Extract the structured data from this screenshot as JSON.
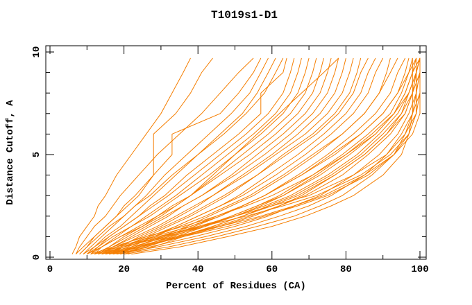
{
  "title": "T1019s1-D1",
  "colors": {
    "curve": "#f57e00",
    "axis": "#000000",
    "background": "#ffffff",
    "text": "#000000"
  },
  "chart_data": {
    "type": "line",
    "title": "T1019s1-D1",
    "xlabel": "Percent of Residues (CA)",
    "ylabel": "Distance Cutoff, A",
    "xlim": [
      0,
      100
    ],
    "ylim": [
      0,
      10
    ],
    "x_major_ticks": [
      0,
      20,
      40,
      60,
      80,
      100
    ],
    "x_minor_ticks": [
      10,
      30,
      50,
      70,
      90
    ],
    "y_major_ticks": [
      0,
      5,
      10
    ],
    "y_minor_ticks": [
      1,
      2,
      3,
      4,
      6,
      7,
      8,
      9
    ],
    "grid": false,
    "legend_position": "none",
    "series_color": "#f57e00",
    "description": "Cumulative model accuracy curves: percent of CA residues (x) under each distance cutoff in Angstroms (y); one orange curve per model, no legend shown",
    "y_levels": [
      0.15,
      0.5,
      1,
      1.5,
      2,
      2.5,
      3,
      4,
      5,
      6,
      7,
      8,
      9,
      9.7
    ],
    "series_x": [
      [
        6,
        7,
        8,
        10,
        12,
        13,
        15,
        18,
        22,
        26,
        30,
        33,
        36,
        38
      ],
      [
        7,
        8,
        10,
        12,
        15,
        17,
        19,
        24,
        29,
        35,
        41,
        46,
        51,
        55
      ],
      [
        8,
        10,
        12,
        15,
        18,
        20,
        23,
        28,
        33,
        33,
        46,
        51,
        55,
        57
      ],
      [
        9,
        11,
        14,
        17,
        20,
        23,
        26,
        31,
        37,
        43,
        49,
        54,
        57,
        59
      ],
      [
        10,
        12,
        15,
        19,
        22,
        25,
        28,
        34,
        40,
        46,
        52,
        56,
        59,
        61
      ],
      [
        8,
        10,
        13,
        16,
        20,
        23,
        27,
        33,
        40,
        47,
        53,
        58,
        61,
        63
      ],
      [
        11,
        13,
        16,
        20,
        24,
        27,
        31,
        37,
        44,
        51,
        57,
        57,
        63,
        64
      ],
      [
        9,
        12,
        16,
        20,
        24,
        28,
        32,
        39,
        46,
        53,
        59,
        63,
        65,
        66
      ],
      [
        12,
        14,
        18,
        22,
        26,
        30,
        34,
        41,
        48,
        55,
        61,
        65,
        67,
        68
      ],
      [
        10,
        13,
        17,
        22,
        27,
        31,
        35,
        43,
        50,
        57,
        63,
        67,
        69,
        70
      ],
      [
        13,
        16,
        20,
        25,
        29,
        33,
        38,
        45,
        52,
        59,
        65,
        69,
        71,
        72
      ],
      [
        11,
        14,
        19,
        24,
        29,
        34,
        38,
        46,
        54,
        61,
        67,
        71,
        73,
        74
      ],
      [
        14,
        17,
        22,
        27,
        32,
        36,
        41,
        49,
        56,
        63,
        69,
        73,
        75,
        76
      ],
      [
        12,
        16,
        21,
        26,
        31,
        36,
        41,
        50,
        58,
        65,
        71,
        75,
        77,
        78
      ],
      [
        15,
        19,
        24,
        30,
        35,
        40,
        44,
        52,
        60,
        67,
        73,
        77,
        79,
        80
      ],
      [
        13,
        17,
        23,
        29,
        34,
        39,
        44,
        53,
        61,
        69,
        75,
        79,
        81,
        82
      ],
      [
        16,
        20,
        26,
        32,
        38,
        43,
        48,
        56,
        63,
        71,
        77,
        81,
        83,
        84
      ],
      [
        14,
        18,
        25,
        31,
        37,
        42,
        47,
        56,
        64,
        72,
        78,
        82,
        84,
        86
      ],
      [
        17,
        22,
        28,
        34,
        40,
        46,
        51,
        59,
        67,
        74,
        80,
        84,
        86,
        88
      ],
      [
        15,
        20,
        27,
        34,
        40,
        46,
        52,
        61,
        69,
        76,
        82,
        86,
        88,
        90
      ],
      [
        18,
        23,
        30,
        37,
        43,
        49,
        55,
        64,
        72,
        79,
        85,
        89,
        91,
        92
      ],
      [
        16,
        21,
        28,
        35,
        42,
        48,
        54,
        63,
        71,
        79,
        85,
        89,
        92,
        94
      ],
      [
        19,
        25,
        32,
        39,
        46,
        52,
        58,
        67,
        75,
        82,
        88,
        92,
        94,
        96
      ],
      [
        17,
        23,
        31,
        38,
        45,
        52,
        58,
        68,
        77,
        84,
        90,
        94,
        96,
        97
      ],
      [
        20,
        26,
        34,
        42,
        49,
        56,
        62,
        71,
        79,
        86,
        92,
        95,
        97,
        98
      ],
      [
        18,
        24,
        33,
        41,
        49,
        56,
        63,
        73,
        81,
        88,
        93,
        96,
        98,
        99
      ],
      [
        21,
        28,
        36,
        44,
        52,
        59,
        66,
        76,
        84,
        90,
        95,
        97,
        99,
        100
      ],
      [
        19,
        26,
        35,
        44,
        52,
        60,
        67,
        77,
        85,
        91,
        96,
        98,
        99,
        100
      ],
      [
        12,
        18,
        28,
        38,
        46,
        52,
        58,
        68,
        76,
        84,
        90,
        94,
        97,
        99
      ],
      [
        14,
        22,
        32,
        42,
        50,
        57,
        63,
        72,
        80,
        87,
        93,
        96,
        98,
        100
      ],
      [
        16,
        25,
        36,
        46,
        55,
        62,
        68,
        77,
        85,
        91,
        95,
        98,
        99,
        100
      ],
      [
        13,
        20,
        31,
        41,
        50,
        58,
        65,
        75,
        83,
        89,
        94,
        97,
        99,
        100
      ],
      [
        15,
        24,
        35,
        45,
        54,
        62,
        69,
        79,
        86,
        92,
        96,
        98,
        100,
        100
      ],
      [
        17,
        27,
        39,
        50,
        59,
        66,
        73,
        82,
        89,
        94,
        97,
        99,
        100,
        100
      ],
      [
        11,
        17,
        26,
        36,
        45,
        53,
        60,
        71,
        80,
        88,
        93,
        97,
        99,
        100
      ],
      [
        18,
        29,
        42,
        53,
        62,
        70,
        76,
        85,
        91,
        95,
        98,
        99,
        100,
        100
      ],
      [
        20,
        32,
        45,
        56,
        66,
        73,
        79,
        87,
        93,
        96,
        98,
        100,
        100,
        100
      ],
      [
        22,
        35,
        48,
        60,
        69,
        76,
        82,
        90,
        95,
        97,
        99,
        100,
        100,
        100
      ],
      [
        14,
        20,
        30,
        40,
        50,
        60,
        70,
        82,
        91,
        96,
        99,
        99,
        99,
        99
      ],
      [
        16,
        24,
        36,
        48,
        58,
        67,
        75,
        86,
        93,
        97,
        99,
        99,
        99,
        100
      ],
      [
        12,
        19,
        29,
        41,
        53,
        63,
        72,
        84,
        92,
        97,
        98,
        98,
        98,
        98
      ],
      [
        15,
        23,
        34,
        46,
        57,
        66,
        74,
        85,
        93,
        98,
        100,
        100,
        100,
        100
      ],
      [
        7,
        9,
        12,
        15,
        18,
        21,
        24,
        28,
        28,
        28,
        34,
        38,
        41,
        44
      ],
      [
        10,
        14,
        19,
        25,
        30,
        34,
        38,
        44,
        50,
        56,
        62,
        68,
        74,
        78
      ]
    ]
  }
}
